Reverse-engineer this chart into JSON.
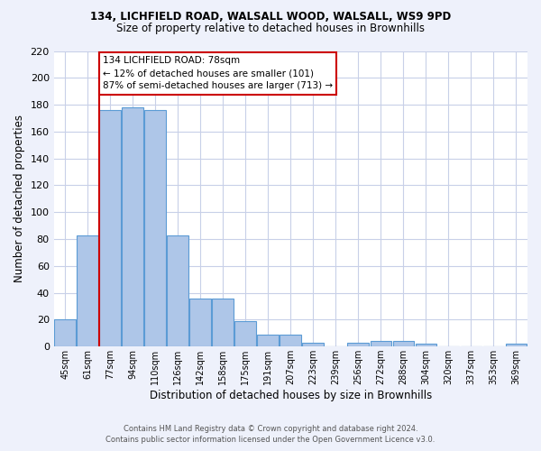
{
  "title1": "134, LICHFIELD ROAD, WALSALL WOOD, WALSALL, WS9 9PD",
  "title2": "Size of property relative to detached houses in Brownhills",
  "xlabel": "Distribution of detached houses by size in Brownhills",
  "ylabel": "Number of detached properties",
  "categories": [
    "45sqm",
    "61sqm",
    "77sqm",
    "94sqm",
    "110sqm",
    "126sqm",
    "142sqm",
    "158sqm",
    "175sqm",
    "191sqm",
    "207sqm",
    "223sqm",
    "239sqm",
    "256sqm",
    "272sqm",
    "288sqm",
    "304sqm",
    "320sqm",
    "337sqm",
    "353sqm",
    "369sqm"
  ],
  "values": [
    20,
    83,
    176,
    178,
    176,
    83,
    36,
    36,
    19,
    9,
    9,
    3,
    0,
    3,
    4,
    4,
    2,
    0,
    0,
    0,
    2
  ],
  "bar_color": "#aec6e8",
  "bar_edge_color": "#5b9bd5",
  "property_line_color": "#cc0000",
  "annotation_text": "134 LICHFIELD ROAD: 78sqm\n← 12% of detached houses are smaller (101)\n87% of semi-detached houses are larger (713) →",
  "annotation_box_color": "#ffffff",
  "annotation_box_edge": "#cc0000",
  "ylim": [
    0,
    220
  ],
  "yticks": [
    0,
    20,
    40,
    60,
    80,
    100,
    120,
    140,
    160,
    180,
    200,
    220
  ],
  "footer": "Contains HM Land Registry data © Crown copyright and database right 2024.\nContains public sector information licensed under the Open Government Licence v3.0.",
  "bg_color": "#eef1fb",
  "plot_bg_color": "#ffffff",
  "grid_color": "#c8d0e8"
}
